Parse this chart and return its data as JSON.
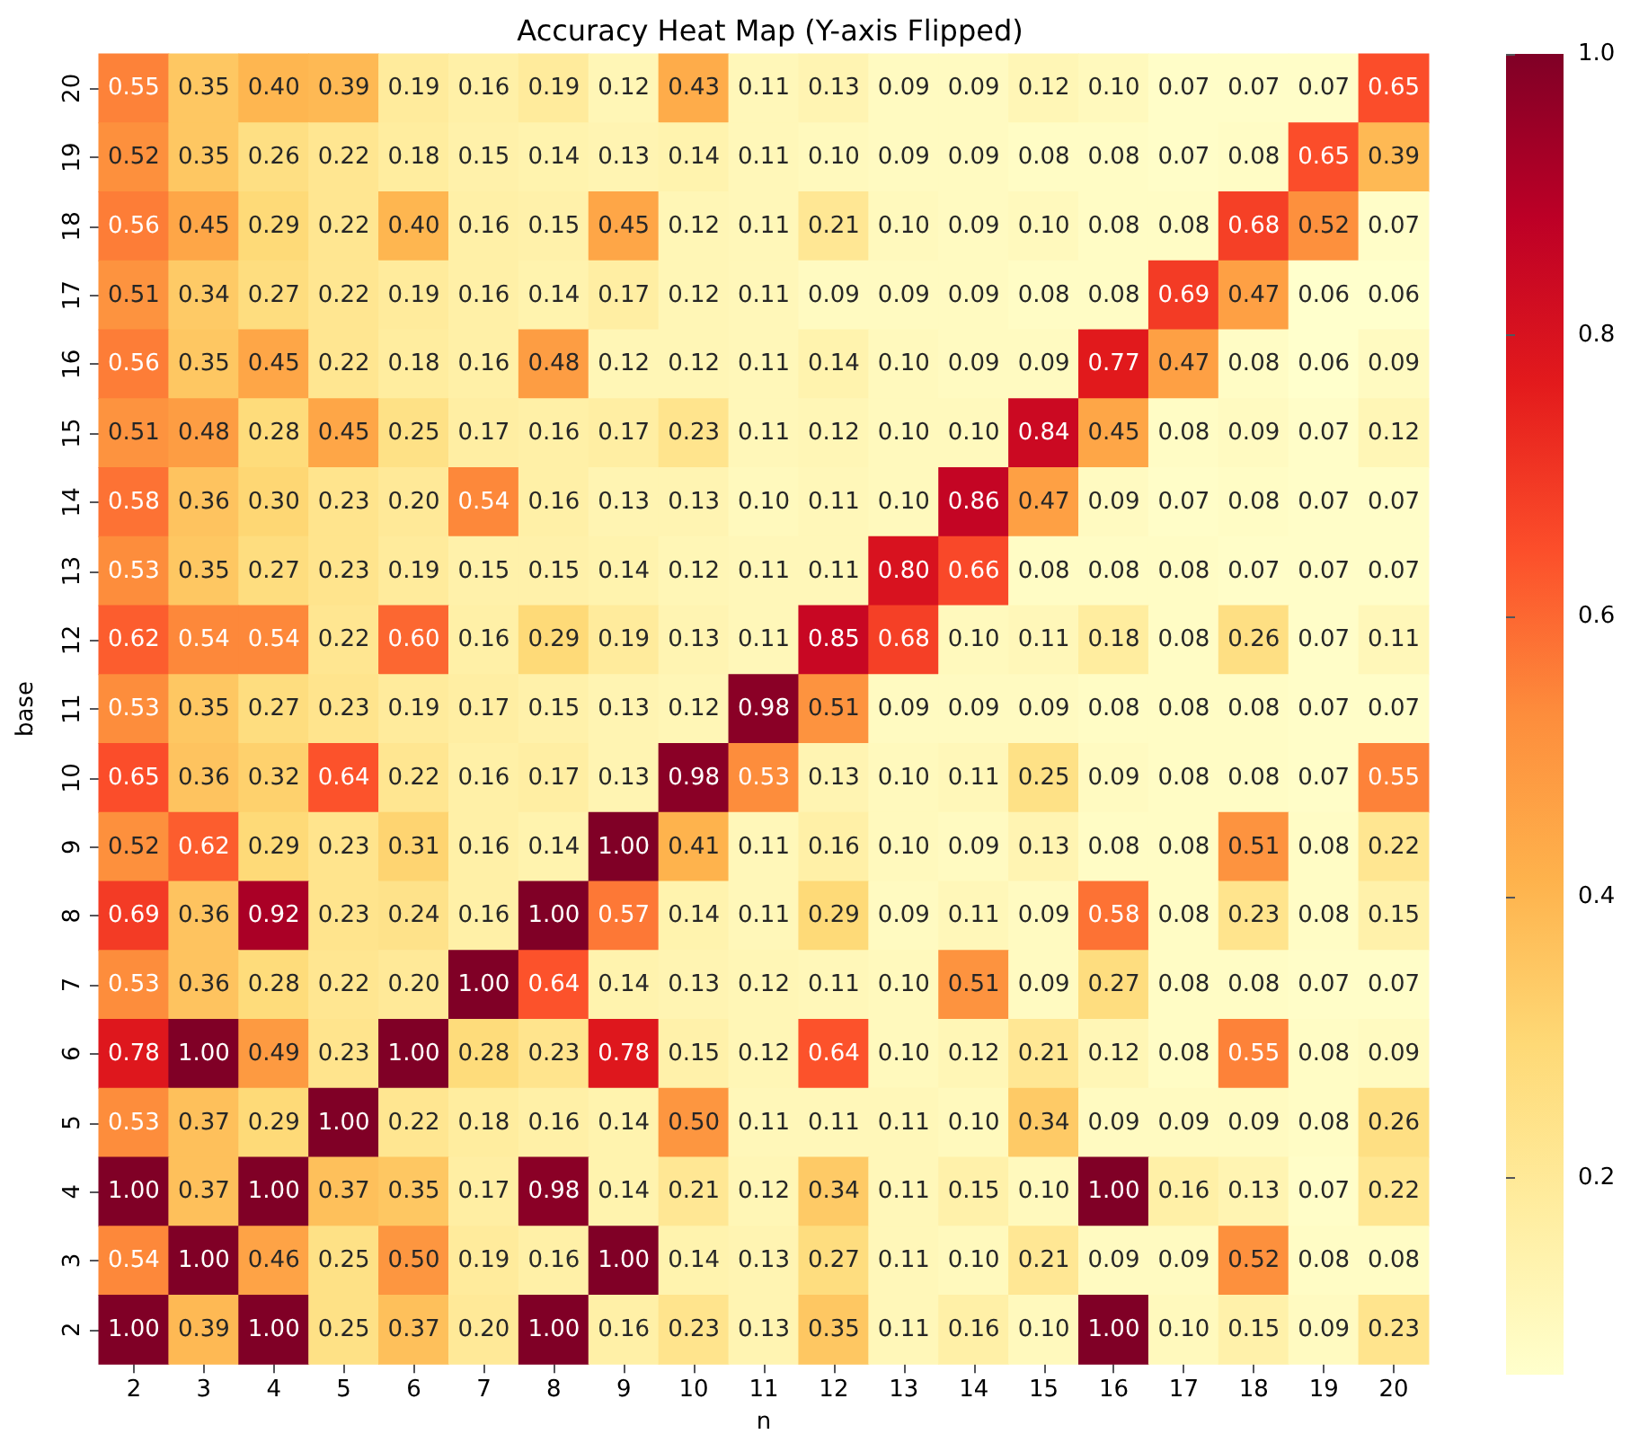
{
  "chart_data": {
    "type": "heatmap",
    "title": "Accuracy Heat Map (Y-axis Flipped)",
    "xlabel": "n",
    "ylabel": "base",
    "categories": [
      "2",
      "3",
      "4",
      "5",
      "6",
      "7",
      "8",
      "9",
      "10",
      "11",
      "12",
      "13",
      "14",
      "15",
      "16",
      "17",
      "18",
      "19",
      "20"
    ],
    "y_categories": [
      "20",
      "19",
      "18",
      "17",
      "16",
      "15",
      "14",
      "13",
      "12",
      "11",
      "10",
      "9",
      "8",
      "7",
      "6",
      "5",
      "4",
      "3",
      "2"
    ],
    "cells": [
      [
        0.55,
        0.35,
        0.4,
        0.39,
        0.19,
        0.16,
        0.19,
        0.12,
        0.43,
        0.11,
        0.13,
        0.09,
        0.09,
        0.12,
        0.1,
        0.07,
        0.07,
        0.07,
        0.65
      ],
      [
        0.52,
        0.35,
        0.26,
        0.22,
        0.18,
        0.15,
        0.14,
        0.13,
        0.14,
        0.11,
        0.1,
        0.09,
        0.09,
        0.08,
        0.08,
        0.07,
        0.08,
        0.65,
        0.39
      ],
      [
        0.56,
        0.45,
        0.29,
        0.22,
        0.4,
        0.16,
        0.15,
        0.45,
        0.12,
        0.11,
        0.21,
        0.1,
        0.09,
        0.1,
        0.08,
        0.08,
        0.68,
        0.52,
        0.07
      ],
      [
        0.51,
        0.34,
        0.27,
        0.22,
        0.19,
        0.16,
        0.14,
        0.17,
        0.12,
        0.11,
        0.09,
        0.09,
        0.09,
        0.08,
        0.08,
        0.69,
        0.47,
        0.06,
        0.06
      ],
      [
        0.56,
        0.35,
        0.45,
        0.22,
        0.18,
        0.16,
        0.48,
        0.12,
        0.12,
        0.11,
        0.14,
        0.1,
        0.09,
        0.09,
        0.77,
        0.47,
        0.08,
        0.06,
        0.09
      ],
      [
        0.51,
        0.48,
        0.28,
        0.45,
        0.25,
        0.17,
        0.16,
        0.17,
        0.23,
        0.11,
        0.12,
        0.1,
        0.1,
        0.84,
        0.45,
        0.08,
        0.09,
        0.07,
        0.12
      ],
      [
        0.58,
        0.36,
        0.3,
        0.23,
        0.2,
        0.54,
        0.16,
        0.13,
        0.13,
        0.1,
        0.11,
        0.1,
        0.86,
        0.47,
        0.09,
        0.07,
        0.08,
        0.07,
        0.07
      ],
      [
        0.53,
        0.35,
        0.27,
        0.23,
        0.19,
        0.15,
        0.15,
        0.14,
        0.12,
        0.11,
        0.11,
        0.8,
        0.66,
        0.08,
        0.08,
        0.08,
        0.07,
        0.07,
        0.07
      ],
      [
        0.62,
        0.54,
        0.54,
        0.22,
        0.6,
        0.16,
        0.29,
        0.19,
        0.13,
        0.11,
        0.85,
        0.68,
        0.1,
        0.11,
        0.18,
        0.08,
        0.26,
        0.07,
        0.11
      ],
      [
        0.53,
        0.35,
        0.27,
        0.23,
        0.19,
        0.17,
        0.15,
        0.13,
        0.12,
        0.98,
        0.51,
        0.09,
        0.09,
        0.09,
        0.08,
        0.08,
        0.08,
        0.07,
        0.07
      ],
      [
        0.65,
        0.36,
        0.32,
        0.64,
        0.22,
        0.16,
        0.17,
        0.13,
        0.98,
        0.53,
        0.13,
        0.1,
        0.11,
        0.25,
        0.09,
        0.08,
        0.08,
        0.07,
        0.55
      ],
      [
        0.52,
        0.62,
        0.29,
        0.23,
        0.31,
        0.16,
        0.14,
        1.0,
        0.41,
        0.11,
        0.16,
        0.1,
        0.09,
        0.13,
        0.08,
        0.08,
        0.51,
        0.08,
        0.22
      ],
      [
        0.69,
        0.36,
        0.92,
        0.23,
        0.24,
        0.16,
        1.0,
        0.57,
        0.14,
        0.11,
        0.29,
        0.09,
        0.11,
        0.09,
        0.58,
        0.08,
        0.23,
        0.08,
        0.15
      ],
      [
        0.53,
        0.36,
        0.28,
        0.22,
        0.2,
        1.0,
        0.64,
        0.14,
        0.13,
        0.12,
        0.11,
        0.1,
        0.51,
        0.09,
        0.27,
        0.08,
        0.08,
        0.07,
        0.07
      ],
      [
        0.78,
        1.0,
        0.49,
        0.23,
        1.0,
        0.28,
        0.23,
        0.78,
        0.15,
        0.12,
        0.64,
        0.1,
        0.12,
        0.21,
        0.12,
        0.08,
        0.55,
        0.08,
        0.09
      ],
      [
        0.53,
        0.37,
        0.29,
        1.0,
        0.22,
        0.18,
        0.16,
        0.14,
        0.5,
        0.11,
        0.11,
        0.11,
        0.1,
        0.34,
        0.09,
        0.09,
        0.09,
        0.08,
        0.26
      ],
      [
        1.0,
        0.37,
        1.0,
        0.37,
        0.35,
        0.17,
        0.98,
        0.14,
        0.21,
        0.12,
        0.34,
        0.11,
        0.15,
        0.1,
        1.0,
        0.16,
        0.13,
        0.07,
        0.22
      ],
      [
        0.54,
        1.0,
        0.46,
        0.25,
        0.5,
        0.19,
        0.16,
        1.0,
        0.14,
        0.13,
        0.27,
        0.11,
        0.1,
        0.21,
        0.09,
        0.09,
        0.52,
        0.08,
        0.08
      ],
      [
        1.0,
        0.39,
        1.0,
        0.25,
        0.37,
        0.2,
        1.0,
        0.16,
        0.23,
        0.13,
        0.35,
        0.11,
        0.16,
        0.1,
        1.0,
        0.1,
        0.15,
        0.09,
        0.23
      ]
    ],
    "cell_labels": [
      [
        "0.55",
        "0.35",
        "0.40",
        "0.39",
        "0.19",
        "0.16",
        "0.19",
        "0.12",
        "0.43",
        "0.11",
        "0.13",
        "0.09",
        "0.09",
        "0.12",
        "0.10",
        "0.07",
        "0.07",
        "0.07",
        "0.65"
      ],
      [
        "0.52",
        "0.35",
        "0.26",
        "0.22",
        "0.18",
        "0.15",
        "0.14",
        "0.13",
        "0.14",
        "0.11",
        "0.10",
        "0.09",
        "0.09",
        "0.08",
        "0.08",
        "0.07",
        "0.08",
        "0.65",
        "0.39"
      ],
      [
        "0.56",
        "0.45",
        "0.29",
        "0.22",
        "0.40",
        "0.16",
        "0.15",
        "0.45",
        "0.12",
        "0.11",
        "0.21",
        "0.10",
        "0.09",
        "0.10",
        "0.08",
        "0.08",
        "0.68",
        "0.52",
        "0.07"
      ],
      [
        "0.51",
        "0.34",
        "0.27",
        "0.22",
        "0.19",
        "0.16",
        "0.14",
        "0.17",
        "0.12",
        "0.11",
        "0.09",
        "0.09",
        "0.09",
        "0.08",
        "0.08",
        "0.69",
        "0.47",
        "0.06",
        "0.06"
      ],
      [
        "0.56",
        "0.35",
        "0.45",
        "0.22",
        "0.18",
        "0.16",
        "0.48",
        "0.12",
        "0.12",
        "0.11",
        "0.14",
        "0.10",
        "0.09",
        "0.09",
        "0.77",
        "0.47",
        "0.08",
        "0.06",
        "0.09"
      ],
      [
        "0.51",
        "0.48",
        "0.28",
        "0.45",
        "0.25",
        "0.17",
        "0.16",
        "0.17",
        "0.23",
        "0.11",
        "0.12",
        "0.10",
        "0.10",
        "0.84",
        "0.45",
        "0.08",
        "0.09",
        "0.07",
        "0.12"
      ],
      [
        "0.58",
        "0.36",
        "0.30",
        "0.23",
        "0.20",
        "0.54",
        "0.16",
        "0.13",
        "0.13",
        "0.10",
        "0.11",
        "0.10",
        "0.86",
        "0.47",
        "0.09",
        "0.07",
        "0.08",
        "0.07",
        "0.07"
      ],
      [
        "0.53",
        "0.35",
        "0.27",
        "0.23",
        "0.19",
        "0.15",
        "0.15",
        "0.14",
        "0.12",
        "0.11",
        "0.11",
        "0.80",
        "0.66",
        "0.08",
        "0.08",
        "0.08",
        "0.07",
        "0.07",
        "0.07"
      ],
      [
        "0.62",
        "0.54",
        "0.54",
        "0.22",
        "0.60",
        "0.16",
        "0.29",
        "0.19",
        "0.13",
        "0.11",
        "0.85",
        "0.68",
        "0.10",
        "0.11",
        "0.18",
        "0.08",
        "0.26",
        "0.07",
        "0.11"
      ],
      [
        "0.53",
        "0.35",
        "0.27",
        "0.23",
        "0.19",
        "0.17",
        "0.15",
        "0.13",
        "0.12",
        "0.98",
        "0.51",
        "0.09",
        "0.09",
        "0.09",
        "0.08",
        "0.08",
        "0.08",
        "0.07",
        "0.07"
      ],
      [
        "0.65",
        "0.36",
        "0.32",
        "0.64",
        "0.22",
        "0.16",
        "0.17",
        "0.13",
        "0.98",
        "0.53",
        "0.13",
        "0.10",
        "0.11",
        "0.25",
        "0.09",
        "0.08",
        "0.08",
        "0.07",
        "0.55"
      ],
      [
        "0.52",
        "0.62",
        "0.29",
        "0.23",
        "0.31",
        "0.16",
        "0.14",
        "1.00",
        "0.41",
        "0.11",
        "0.16",
        "0.10",
        "0.09",
        "0.13",
        "0.08",
        "0.08",
        "0.51",
        "0.08",
        "0.22"
      ],
      [
        "0.69",
        "0.36",
        "0.92",
        "0.23",
        "0.24",
        "0.16",
        "1.00",
        "0.57",
        "0.14",
        "0.11",
        "0.29",
        "0.09",
        "0.11",
        "0.09",
        "0.58",
        "0.08",
        "0.23",
        "0.08",
        "0.15"
      ],
      [
        "0.53",
        "0.36",
        "0.28",
        "0.22",
        "0.20",
        "1.00",
        "0.64",
        "0.14",
        "0.13",
        "0.12",
        "0.11",
        "0.10",
        "0.51",
        "0.09",
        "0.27",
        "0.08",
        "0.08",
        "0.07",
        "0.07"
      ],
      [
        "0.78",
        "1.00",
        "0.49",
        "0.23",
        "1.00",
        "0.28",
        "0.23",
        "0.78",
        "0.15",
        "0.12",
        "0.64",
        "0.10",
        "0.12",
        "0.21",
        "0.12",
        "0.08",
        "0.55",
        "0.08",
        "0.09"
      ],
      [
        "0.53",
        "0.37",
        "0.29",
        "1.00",
        "0.22",
        "0.18",
        "0.16",
        "0.14",
        "0.50",
        "0.11",
        "0.11",
        "0.11",
        "0.10",
        "0.34",
        "0.09",
        "0.09",
        "0.09",
        "0.08",
        "0.26"
      ],
      [
        "1.00",
        "0.37",
        "1.00",
        "0.37",
        "0.35",
        "0.17",
        "0.98",
        "0.14",
        "0.21",
        "0.12",
        "0.34",
        "0.11",
        "0.15",
        "0.10",
        "1.00",
        "0.16",
        "0.13",
        "0.07",
        "0.22"
      ],
      [
        "0.54",
        "1.00",
        "0.46",
        "0.25",
        "0.50",
        "0.19",
        "0.16",
        "1.00",
        "0.14",
        "0.13",
        "0.27",
        "0.11",
        "0.10",
        "0.21",
        "0.09",
        "0.09",
        "0.52",
        "0.08",
        "0.08"
      ],
      [
        "1.00",
        "0.39",
        "1.00",
        "0.25",
        "0.37",
        "0.20",
        "1.00",
        "0.16",
        "0.23",
        "0.13",
        "0.35",
        "0.11",
        "0.16",
        "0.10",
        "1.00",
        "0.10",
        "0.15",
        "0.09",
        "0.23"
      ]
    ],
    "clim": [
      0.06,
      1.0
    ],
    "cticks": [
      0.2,
      0.4,
      0.6,
      0.8,
      {
        "value": 1.0,
        "label": "1.0"
      }
    ]
  }
}
